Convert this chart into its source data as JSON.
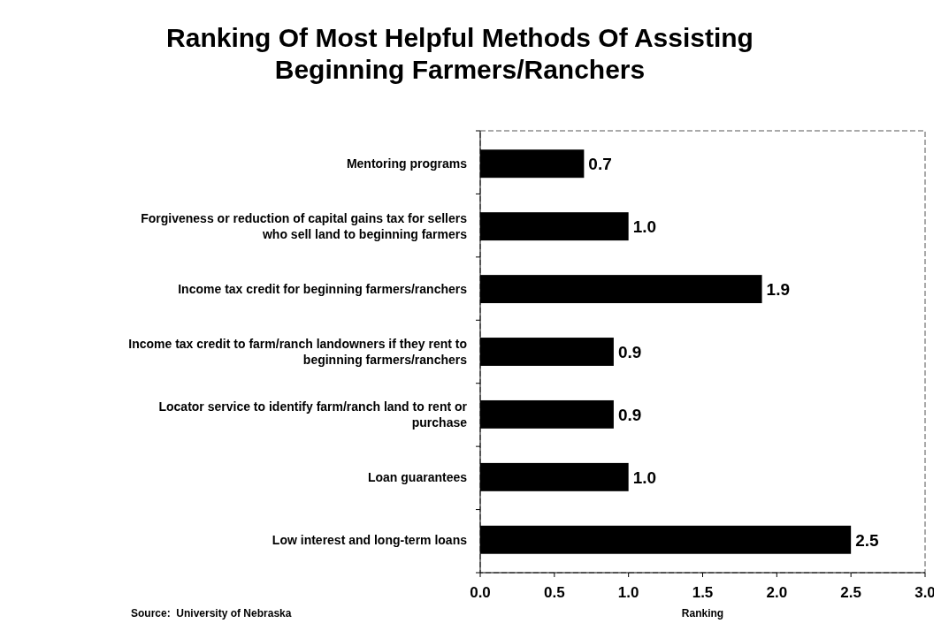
{
  "chart_data": {
    "type": "bar",
    "orientation": "horizontal",
    "title": "Ranking Of Most Helpful Methods Of Assisting Beginning Farmers/Ranchers",
    "xlabel": "Ranking",
    "categories": [
      "Mentoring programs",
      "Forgiveness or reduction of capital gains tax for sellers who sell land to beginning farmers",
      "Income tax credit for beginning farmers/ranchers",
      "Income tax credit to farm/ranch landowners if they rent to beginning farmers/ranchers",
      "Locator service to identify farm/ranch land to rent or purchase",
      "Loan guarantees",
      "Low interest and long-term loans"
    ],
    "values": [
      0.7,
      1.0,
      1.9,
      0.9,
      0.9,
      1.0,
      2.5
    ],
    "value_labels": [
      "0.7",
      "1.0",
      "1.9",
      "0.9",
      "0.9",
      "1.0",
      "2.5"
    ],
    "color": "#000000",
    "xlim": [
      0,
      3
    ],
    "xticks": [
      {
        "value": 0,
        "label": "0.0"
      },
      {
        "value": 0.5,
        "label": "0.5"
      },
      {
        "value": 1,
        "label": "1.0"
      },
      {
        "value": 1.5,
        "label": "1.5"
      },
      {
        "value": 2,
        "label": "2.0"
      },
      {
        "value": 2.5,
        "label": "2.5"
      },
      {
        "value": 3,
        "label": "3.0"
      }
    ],
    "grid": false,
    "legend": false,
    "annotations": [
      "Source:  University of Nebraska"
    ]
  }
}
